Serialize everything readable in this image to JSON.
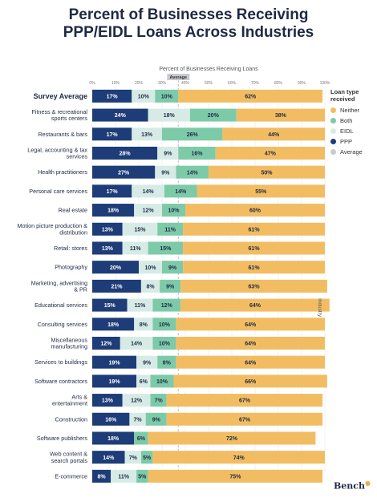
{
  "title": {
    "line1": "Percent of Businesses Receiving",
    "line2": "PPP/EIDL Loans Across Industries"
  },
  "colors": {
    "ppp": "#1d3c78",
    "eidl": "#d7ebe6",
    "both": "#7dcaa9",
    "neither": "#f2bd62",
    "average": "#c8cacd"
  },
  "legend": {
    "title": "Loan type received",
    "items": [
      {
        "label": "Neither",
        "key": "neither"
      },
      {
        "label": "Both",
        "key": "both"
      },
      {
        "label": "EIDL",
        "key": "eidl"
      },
      {
        "label": "PPP",
        "key": "ppp"
      },
      {
        "label": "Average",
        "key": "average"
      }
    ]
  },
  "brand": {
    "name": "Bench"
  },
  "chart_data": {
    "type": "bar",
    "orientation": "horizontal",
    "stacked": true,
    "title": "",
    "xlabel": "Percent of Businesses Receiving Loans",
    "ylabel": "Industry",
    "xlim": [
      0,
      100
    ],
    "x_ticks": [
      "0%",
      "10%",
      "20%",
      "30%",
      "40%",
      "50%",
      "60%",
      "70%",
      "80%",
      "90%",
      "100%"
    ],
    "average_marker": {
      "label": "Average",
      "value": 37
    },
    "legend_position": "right",
    "grid": true,
    "categories": [
      "Survey Average",
      "Fitness & recreational sports centers",
      "Restaurants & bars",
      "Legal, accounting & tax services",
      "Health practitioners",
      "Personal care services",
      "Real estate",
      "Motion picture production & distribution",
      "Retail: stores",
      "Photography",
      "Marketing, advertising & PR",
      "Educational services",
      "Consulting services",
      "Miscellaneous manufacturing",
      "Services to buildings",
      "Software contractors",
      "Arts & entertainment",
      "Construction",
      "Software publishers",
      "Web content & search portals",
      "E-commerce"
    ],
    "category_lines": [
      [
        "Survey Average"
      ],
      [
        "Fitness & recreational",
        "sports centers"
      ],
      [
        "Restaurants & bars"
      ],
      [
        "Legal, accounting & tax",
        "services"
      ],
      [
        "Health practitioners"
      ],
      [
        "Personal care services"
      ],
      [
        "Real estate"
      ],
      [
        "Motion picture production &",
        "distribution"
      ],
      [
        "Retail: stores"
      ],
      [
        "Photography"
      ],
      [
        "Marketing, advertising",
        "& PR"
      ],
      [
        "Educational services"
      ],
      [
        "Consulting services"
      ],
      [
        "Miscellaneous",
        "manufacturing"
      ],
      [
        "Services to buildings"
      ],
      [
        "Software contractors"
      ],
      [
        "Arts &",
        "entertainment"
      ],
      [
        "Construction"
      ],
      [
        "Software publishers"
      ],
      [
        "Web content &",
        "search portals"
      ],
      [
        "E-commerce"
      ]
    ],
    "series": [
      {
        "name": "PPP",
        "key": "ppp",
        "values": [
          17,
          24,
          17,
          28,
          27,
          17,
          18,
          13,
          13,
          20,
          21,
          15,
          18,
          12,
          19,
          19,
          13,
          16,
          18,
          14,
          8
        ]
      },
      {
        "name": "EIDL",
        "key": "eidl",
        "values": [
          10,
          18,
          13,
          9,
          9,
          14,
          12,
          15,
          11,
          10,
          8,
          11,
          8,
          14,
          9,
          6,
          12,
          7,
          0,
          7,
          11
        ]
      },
      {
        "name": "Both",
        "key": "both",
        "values": [
          10,
          20,
          26,
          16,
          14,
          14,
          10,
          11,
          15,
          9,
          9,
          12,
          10,
          10,
          8,
          10,
          7,
          9,
          6,
          5,
          5
        ]
      },
      {
        "name": "Neither",
        "key": "neither",
        "values": [
          62,
          38,
          44,
          47,
          50,
          55,
          60,
          61,
          61,
          61,
          63,
          64,
          64,
          64,
          64,
          66,
          67,
          67,
          72,
          74,
          75
        ]
      }
    ]
  }
}
